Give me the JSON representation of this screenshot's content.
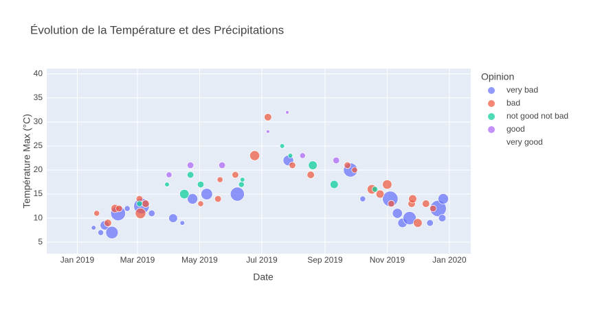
{
  "chart_data": {
    "type": "scatter",
    "title": "Évolution de la Température et des Précipitations",
    "x_label": "Date",
    "y_label": "Température Max (°C)",
    "legend_title": "Opinion",
    "legend": "right",
    "grid": true,
    "xlim": [
      "2018-12-02",
      "2020-01-22"
    ],
    "xticks": [
      {
        "value": "2019-01-01",
        "label": "Jan 2019"
      },
      {
        "value": "2019-03-01",
        "label": "Mar 2019"
      },
      {
        "value": "2019-05-01",
        "label": "May 2019"
      },
      {
        "value": "2019-07-01",
        "label": "Jul 2019"
      },
      {
        "value": "2019-09-01",
        "label": "Sep 2019"
      },
      {
        "value": "2019-11-01",
        "label": "Nov 2019"
      },
      {
        "value": "2020-01-01",
        "label": "Jan 2020"
      }
    ],
    "ylim": [
      2.6,
      41.1
    ],
    "yticks": [
      5,
      10,
      15,
      20,
      25,
      30,
      35,
      40
    ],
    "series": [
      {
        "name": "very bad",
        "color": "#636efa",
        "x": [
          "2019-01-17",
          "2019-01-24",
          "2019-01-28",
          "2019-02-04",
          "2019-02-10",
          "2019-02-19",
          "2019-03-05",
          "2019-03-15",
          "2019-04-05",
          "2019-04-14",
          "2019-04-24",
          "2019-05-08",
          "2019-06-07",
          "2019-07-27",
          "2019-09-26",
          "2019-10-08",
          "2019-11-04",
          "2019-11-11",
          "2019-11-16",
          "2019-11-23",
          "2019-12-13",
          "2019-12-21",
          "2019-12-26",
          "2019-12-25"
        ],
        "values": [
          8,
          7,
          8.5,
          7,
          11,
          12,
          12.5,
          11,
          10,
          9,
          14,
          15,
          15,
          22,
          20,
          14,
          14,
          11,
          9,
          10,
          9,
          12,
          14,
          10
        ],
        "sizes": [
          2,
          3,
          8,
          14,
          20,
          3,
          22,
          4,
          7,
          2,
          10,
          12,
          18,
          10,
          18,
          3,
          22,
          9,
          8,
          16,
          4,
          24,
          10,
          5
        ]
      },
      {
        "name": "bad",
        "color": "#EF553B",
        "x": [
          "2019-01-20",
          "2019-01-31",
          "2019-02-07",
          "2019-02-11",
          "2019-03-03",
          "2019-03-04",
          "2019-03-09",
          "2019-05-02",
          "2019-05-19",
          "2019-05-21",
          "2019-06-05",
          "2019-06-24",
          "2019-07-07",
          "2019-07-31",
          "2019-08-18",
          "2019-09-23",
          "2019-09-30",
          "2019-10-17",
          "2019-10-25",
          "2019-11-01",
          "2019-11-05",
          "2019-11-25",
          "2019-11-26",
          "2019-12-01",
          "2019-12-09",
          "2019-12-16"
        ],
        "values": [
          11,
          9,
          12,
          12,
          14,
          11,
          13,
          13,
          14,
          18,
          19,
          23,
          31,
          21,
          19,
          21,
          20,
          16,
          15,
          17,
          13,
          13,
          14,
          9,
          13,
          12
        ],
        "sizes": [
          3,
          5,
          6,
          4,
          4,
          10,
          5,
          3,
          4,
          3,
          4,
          9,
          5,
          4,
          5,
          4,
          3,
          8,
          6,
          8,
          4,
          5,
          6,
          7,
          5,
          4
        ]
      },
      {
        "name": "not good not bad",
        "color": "#00cc96",
        "x": [
          "2019-03-03",
          "2019-03-30",
          "2019-04-16",
          "2019-04-22",
          "2019-05-02",
          "2019-06-11",
          "2019-06-12",
          "2019-07-21",
          "2019-07-29",
          "2019-08-20",
          "2019-09-10",
          "2019-10-20"
        ],
        "values": [
          13,
          17,
          15,
          19,
          17,
          17,
          18,
          25,
          23,
          21,
          17,
          16
        ],
        "sizes": [
          3,
          2,
          8,
          4,
          4,
          3,
          2,
          2,
          2,
          7,
          6,
          3
        ]
      },
      {
        "name": "good",
        "color": "#ab63fa",
        "x": [
          "2019-04-01",
          "2019-04-22",
          "2019-05-23",
          "2019-07-07",
          "2019-07-26",
          "2019-08-10",
          "2019-09-12"
        ],
        "values": [
          19,
          21,
          21,
          28,
          32,
          23,
          22
        ],
        "sizes": [
          3,
          4,
          4,
          1,
          1,
          3,
          4
        ]
      },
      {
        "name": "very good",
        "color": "#FFA15A",
        "x": [],
        "values": [],
        "sizes": []
      }
    ]
  }
}
